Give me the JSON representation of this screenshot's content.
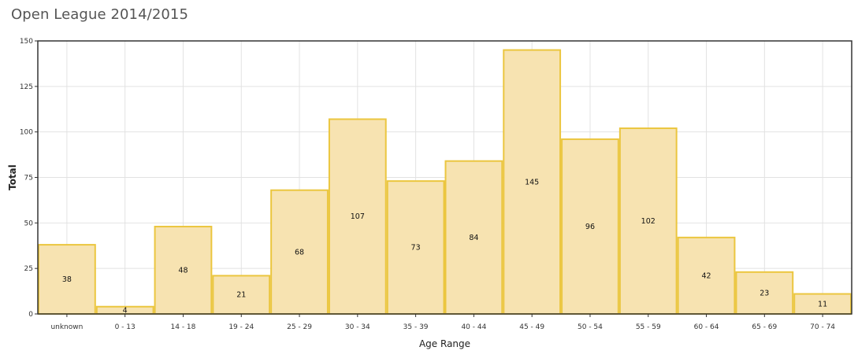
{
  "page_title": "Open League 2014/2015",
  "chart_data": {
    "type": "bar",
    "categories": [
      "unknown",
      "0 - 13",
      "14 - 18",
      "19 - 24",
      "25 - 29",
      "30 - 34",
      "35 - 39",
      "40 - 44",
      "45 - 49",
      "50 - 54",
      "55 - 59",
      "60 - 64",
      "65 - 69",
      "70 - 74"
    ],
    "values": [
      38,
      4,
      48,
      21,
      68,
      107,
      73,
      84,
      145,
      96,
      102,
      42,
      23,
      11
    ],
    "xlabel": "Age Range",
    "ylabel": "Total",
    "ylim": [
      0,
      150
    ],
    "yticks": [
      "0",
      "25",
      "50",
      "75",
      "100",
      "125",
      "150"
    ],
    "grid": true,
    "colors": {
      "bar_fill": "#f7e3b1",
      "bar_stroke": "#ebc63f"
    }
  }
}
